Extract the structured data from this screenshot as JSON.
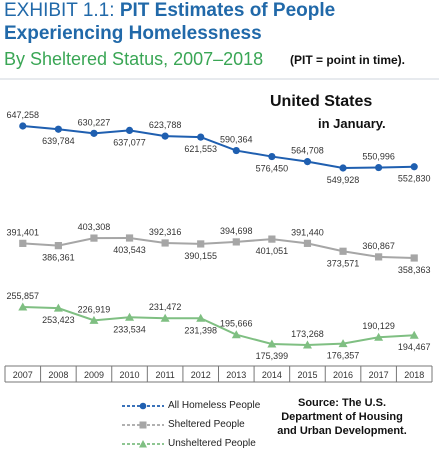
{
  "header": {
    "title_prefix": "EXHIBIT 1.1: ",
    "title_bold_1": "PIT Estimates of People",
    "title_bold_2": "Experiencing Homelessness",
    "subtitle": "By Sheltered Status, 2007–2018",
    "note": "(PIT = point in time)."
  },
  "annotation": {
    "region": "United States",
    "period": "in January."
  },
  "source": {
    "line1": "Source: The U.S.",
    "line2": "Department of Housing",
    "line3": "and Urban Development."
  },
  "colors": {
    "all": "#1f5fb0",
    "sheltered": "#a6a6a6",
    "unsheltered": "#7fbf82",
    "title": "#2169a9",
    "subtitle": "#3aa655",
    "axis": "#777777"
  },
  "chart_data": {
    "type": "line",
    "x": [
      "2007",
      "2008",
      "2009",
      "2010",
      "2011",
      "2012",
      "2013",
      "2014",
      "2015",
      "2016",
      "2017",
      "2018"
    ],
    "series": [
      {
        "name": "All Homeless People",
        "values": [
          647258,
          639784,
          630227,
          637077,
          623788,
          621553,
          590364,
          576450,
          564708,
          549928,
          550996,
          552830
        ],
        "labels": [
          "647,258",
          "639,784",
          "630,227",
          "637,077",
          "623,788",
          "621,553",
          "590,364",
          "576,450",
          "564,708",
          "549,928",
          "550,996",
          "552,830"
        ],
        "marker": "circle"
      },
      {
        "name": "Sheltered People",
        "values": [
          391401,
          386361,
          403308,
          403543,
          392316,
          390155,
          394698,
          401051,
          391440,
          373571,
          360867,
          358363
        ],
        "labels": [
          "391,401",
          "386,361",
          "403,308",
          "403,543",
          "392,316",
          "390,155",
          "394,698",
          "401,051",
          "391,440",
          "373,571",
          "360,867",
          "358,363"
        ],
        "marker": "square"
      },
      {
        "name": "Unsheltered People",
        "values": [
          255857,
          253423,
          226919,
          233534,
          231472,
          231398,
          195666,
          175399,
          173268,
          176357,
          190129,
          194467
        ],
        "labels": [
          "255,857",
          "253,423",
          "226,919",
          "233,534",
          "231,472",
          "231,398",
          "195,666",
          "175,399",
          "173,268",
          "176,357",
          "190,129",
          "194,467"
        ],
        "marker": "triangle"
      }
    ]
  }
}
